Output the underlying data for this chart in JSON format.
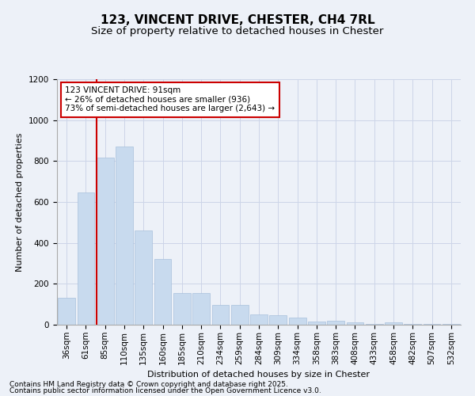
{
  "title": "123, VINCENT DRIVE, CHESTER, CH4 7RL",
  "subtitle": "Size of property relative to detached houses in Chester",
  "xlabel": "Distribution of detached houses by size in Chester",
  "ylabel": "Number of detached properties",
  "categories": [
    "36sqm",
    "61sqm",
    "85sqm",
    "110sqm",
    "135sqm",
    "160sqm",
    "185sqm",
    "210sqm",
    "234sqm",
    "259sqm",
    "284sqm",
    "309sqm",
    "334sqm",
    "358sqm",
    "383sqm",
    "408sqm",
    "433sqm",
    "458sqm",
    "482sqm",
    "507sqm",
    "532sqm"
  ],
  "values": [
    130,
    645,
    815,
    870,
    460,
    320,
    155,
    155,
    95,
    95,
    50,
    45,
    35,
    15,
    20,
    10,
    5,
    10,
    2,
    5,
    2
  ],
  "bar_color": "#c8daee",
  "bar_edge_color": "#a8c0dc",
  "grid_color": "#ccd5e8",
  "background_color": "#edf1f8",
  "vline_color": "#cc0000",
  "annotation_text": "123 VINCENT DRIVE: 91sqm\n← 26% of detached houses are smaller (936)\n73% of semi-detached houses are larger (2,643) →",
  "annotation_box_color": "#ffffff",
  "annotation_box_edge": "#cc0000",
  "ylim": [
    0,
    1200
  ],
  "yticks": [
    0,
    200,
    400,
    600,
    800,
    1000,
    1200
  ],
  "footer1": "Contains HM Land Registry data © Crown copyright and database right 2025.",
  "footer2": "Contains public sector information licensed under the Open Government Licence v3.0.",
  "title_fontsize": 11,
  "subtitle_fontsize": 9.5,
  "axis_label_fontsize": 8,
  "tick_fontsize": 7.5,
  "annotation_fontsize": 7.5,
  "footer_fontsize": 6.5
}
